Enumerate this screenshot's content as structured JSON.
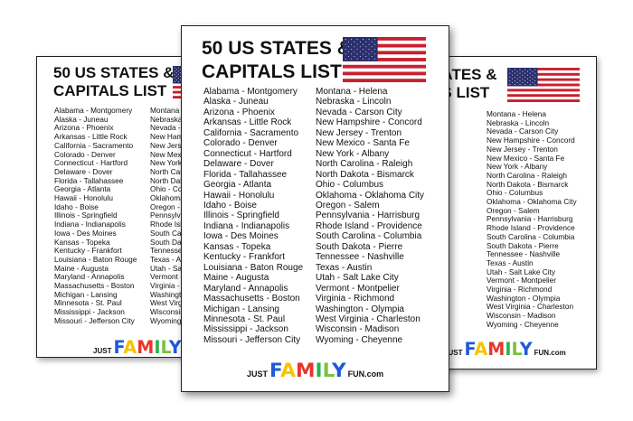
{
  "sheet": {
    "title_line1": "50 US STATES &",
    "title_line2": "CAPITALS LIST",
    "column1": [
      "Alabama - Montgomery",
      "Alaska - Juneau",
      "Arizona - Phoenix",
      "Arkansas - Little Rock",
      "California - Sacramento",
      "Colorado - Denver",
      "Connecticut - Hartford",
      "Delaware - Dover",
      "Florida - Tallahassee",
      "Georgia - Atlanta",
      "Hawaii - Honolulu",
      "Idaho - Boise",
      "Illinois - Springfield",
      "Indiana - Indianapolis",
      "Iowa - Des Moines",
      "Kansas - Topeka",
      "Kentucky - Frankfort",
      "Louisiana - Baton Rouge",
      "Maine - Augusta",
      "Maryland - Annapolis",
      "Massachusetts - Boston",
      "Michigan - Lansing",
      "Minnesota - St. Paul",
      "Mississippi - Jackson",
      "Missouri - Jefferson City"
    ],
    "column2": [
      "Montana - Helena",
      "Nebraska - Lincoln",
      "Nevada - Carson City",
      "New Hampshire - Concord",
      "New Jersey - Trenton",
      "New Mexico - Santa Fe",
      "New York - Albany",
      "North Carolina - Raleigh",
      "North Dakota - Bismarck",
      "Ohio - Columbus",
      "Oklahoma - Oklahoma City",
      "Oregon - Salem",
      "Pennsylvania - Harrisburg",
      "Rhode Island - Providence",
      "South Carolina - Columbia",
      "South Dakota - Pierre",
      "Tennessee - Nashville",
      "Texas - Austin",
      "Utah - Salt Lake City",
      "Vermont - Montpelier",
      "Virginia - Richmond",
      "Washington - Olympia",
      "West Virginia - Charleston",
      "Wisconsin - Madison",
      "Wyoming - Cheyenne"
    ],
    "logo": {
      "prefix": "JUST",
      "main": "FAMILY",
      "suffix": "FUN.com"
    },
    "flag_icon": "us-flag-icon",
    "logo_colors": [
      "#1e5bd8",
      "#f5c400",
      "#e8352b",
      "#2ab24a",
      "#7bc143",
      "#1e5bd8"
    ]
  }
}
